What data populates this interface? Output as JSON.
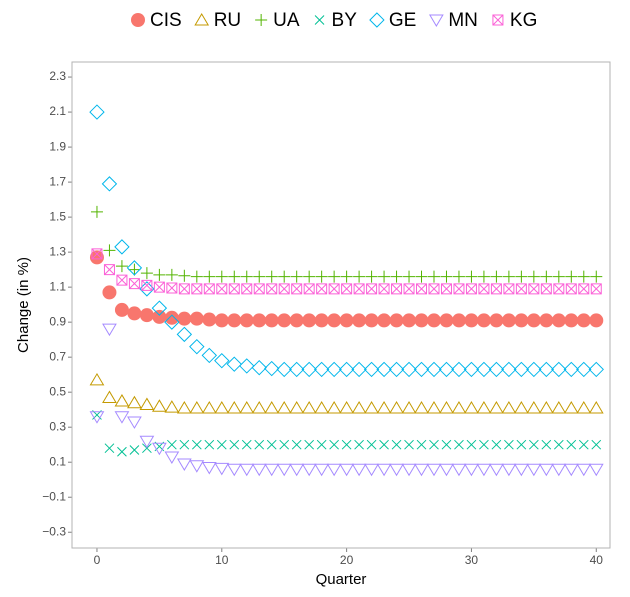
{
  "chart_data": {
    "type": "scatter",
    "x_label": "Quarter",
    "y_label": "Change (in %)",
    "xlim": [
      -2.0,
      41.1
    ],
    "ylim": [
      -0.39,
      2.386
    ],
    "xticks": [
      0,
      10,
      20,
      30,
      40
    ],
    "yticks": [
      {
        "value": -0.3,
        "label": "−0.3"
      },
      {
        "value": -0.1,
        "label": "−0.1"
      },
      0.1,
      0.3,
      0.5,
      0.7,
      0.9,
      1.1,
      1.3,
      1.5,
      1.7,
      1.9,
      2.1,
      2.3
    ],
    "grid": true,
    "legend": "top",
    "x": [
      0,
      1,
      2,
      3,
      4,
      5,
      6,
      7,
      8,
      9,
      10,
      11,
      12,
      13,
      14,
      15,
      16,
      17,
      18,
      19,
      20,
      21,
      22,
      23,
      24,
      25,
      26,
      27,
      28,
      29,
      30,
      31,
      32,
      33,
      34,
      35,
      36,
      37,
      38,
      39,
      40
    ],
    "series": [
      {
        "name": "CIS",
        "color": "#F8766D",
        "shape": "circle",
        "values": [
          1.27,
          1.07,
          0.97,
          0.95,
          0.94,
          0.93,
          0.925,
          0.92,
          0.92,
          0.915,
          0.91,
          0.91,
          0.91,
          0.91,
          0.91,
          0.91,
          0.91,
          0.91,
          0.91,
          0.91,
          0.91,
          0.91,
          0.91,
          0.91,
          0.91,
          0.91,
          0.91,
          0.91,
          0.91,
          0.91,
          0.91,
          0.91,
          0.91,
          0.91,
          0.91,
          0.91,
          0.91,
          0.91,
          0.91,
          0.91,
          0.91
        ]
      },
      {
        "name": "RU",
        "color": "#C49A00",
        "shape": "triangle",
        "values": [
          0.57,
          0.47,
          0.45,
          0.44,
          0.43,
          0.42,
          0.415,
          0.41,
          0.41,
          0.41,
          0.41,
          0.41,
          0.41,
          0.41,
          0.41,
          0.41,
          0.41,
          0.41,
          0.41,
          0.41,
          0.41,
          0.41,
          0.41,
          0.41,
          0.41,
          0.41,
          0.41,
          0.41,
          0.41,
          0.41,
          0.41,
          0.41,
          0.41,
          0.41,
          0.41,
          0.41,
          0.41,
          0.41,
          0.41,
          0.41,
          0.41
        ]
      },
      {
        "name": "UA",
        "color": "#53B400",
        "shape": "plus",
        "values": [
          1.53,
          1.31,
          1.22,
          1.2,
          1.18,
          1.17,
          1.17,
          1.165,
          1.16,
          1.16,
          1.16,
          1.16,
          1.16,
          1.16,
          1.16,
          1.16,
          1.16,
          1.16,
          1.16,
          1.16,
          1.16,
          1.16,
          1.16,
          1.16,
          1.16,
          1.16,
          1.16,
          1.16,
          1.16,
          1.16,
          1.16,
          1.16,
          1.16,
          1.16,
          1.16,
          1.16,
          1.16,
          1.16,
          1.16,
          1.16,
          1.16
        ]
      },
      {
        "name": "BY",
        "color": "#00C094",
        "shape": "cross",
        "values": [
          0.37,
          0.18,
          0.16,
          0.17,
          0.18,
          0.19,
          0.2,
          0.2,
          0.2,
          0.2,
          0.2,
          0.2,
          0.2,
          0.2,
          0.2,
          0.2,
          0.2,
          0.2,
          0.2,
          0.2,
          0.2,
          0.2,
          0.2,
          0.2,
          0.2,
          0.2,
          0.2,
          0.2,
          0.2,
          0.2,
          0.2,
          0.2,
          0.2,
          0.2,
          0.2,
          0.2,
          0.2,
          0.2,
          0.2,
          0.2,
          0.2
        ]
      },
      {
        "name": "GE",
        "color": "#00B6EB",
        "shape": "diamond",
        "values": [
          2.1,
          1.69,
          1.33,
          1.21,
          1.09,
          0.98,
          0.9,
          0.83,
          0.76,
          0.71,
          0.68,
          0.66,
          0.65,
          0.64,
          0.635,
          0.63,
          0.63,
          0.63,
          0.63,
          0.63,
          0.63,
          0.63,
          0.63,
          0.63,
          0.63,
          0.63,
          0.63,
          0.63,
          0.63,
          0.63,
          0.63,
          0.63,
          0.63,
          0.63,
          0.63,
          0.63,
          0.63,
          0.63,
          0.63,
          0.63,
          0.63
        ]
      },
      {
        "name": "MN",
        "color": "#A58AFF",
        "shape": "triangle-down",
        "values": [
          0.36,
          0.86,
          0.36,
          0.33,
          0.22,
          0.18,
          0.13,
          0.09,
          0.08,
          0.07,
          0.065,
          0.06,
          0.06,
          0.06,
          0.06,
          0.06,
          0.06,
          0.06,
          0.06,
          0.06,
          0.06,
          0.06,
          0.06,
          0.06,
          0.06,
          0.06,
          0.06,
          0.06,
          0.06,
          0.06,
          0.06,
          0.06,
          0.06,
          0.06,
          0.06,
          0.06,
          0.06,
          0.06,
          0.06,
          0.06,
          0.06
        ]
      },
      {
        "name": "KG",
        "color": "#FB61D7",
        "shape": "square-cross",
        "values": [
          1.29,
          1.2,
          1.14,
          1.12,
          1.11,
          1.1,
          1.095,
          1.09,
          1.09,
          1.09,
          1.09,
          1.09,
          1.09,
          1.09,
          1.09,
          1.09,
          1.09,
          1.09,
          1.09,
          1.09,
          1.09,
          1.09,
          1.09,
          1.09,
          1.09,
          1.09,
          1.09,
          1.09,
          1.09,
          1.09,
          1.09,
          1.09,
          1.09,
          1.09,
          1.09,
          1.09,
          1.09,
          1.09,
          1.09,
          1.09,
          1.09
        ]
      }
    ]
  }
}
